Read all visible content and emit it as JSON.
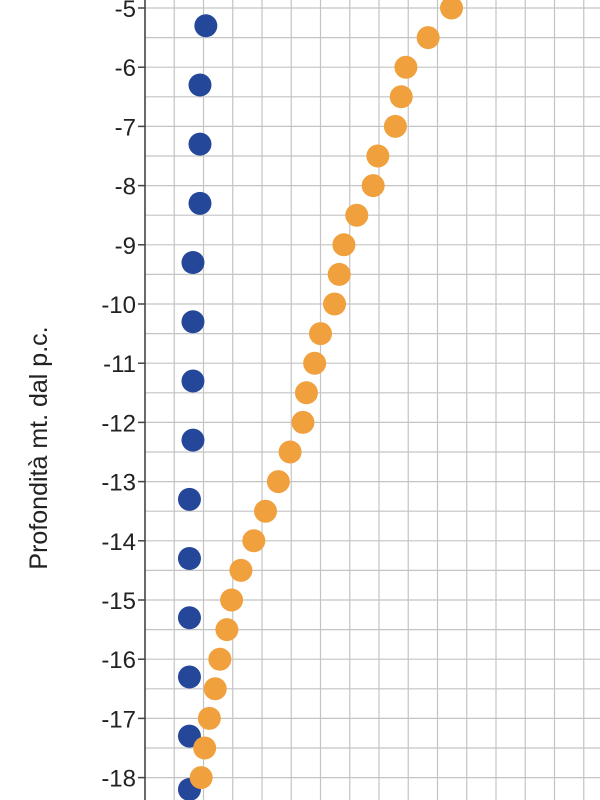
{
  "chart_data": {
    "type": "scatter",
    "title": "",
    "xlabel": "",
    "ylabel": "Profondità mt. dal p.c.",
    "ylim": [
      -18.35,
      -4.85
    ],
    "grid": true,
    "y_ticks": [
      "-5",
      "-6",
      "-7",
      "-8",
      "-9",
      "-10",
      "-11",
      "-12",
      "-13",
      "-14",
      "-15",
      "-16",
      "-17",
      "-18"
    ],
    "series": [
      {
        "color": "#24479a",
        "points": [
          {
            "x": 1.04,
            "y": -5.3
          },
          {
            "x": 0.94,
            "y": -6.3
          },
          {
            "x": 0.94,
            "y": -7.3
          },
          {
            "x": 0.94,
            "y": -8.3
          },
          {
            "x": 0.82,
            "y": -9.3
          },
          {
            "x": 0.82,
            "y": -10.3
          },
          {
            "x": 0.82,
            "y": -11.3
          },
          {
            "x": 0.82,
            "y": -12.3
          },
          {
            "x": 0.76,
            "y": -13.3
          },
          {
            "x": 0.76,
            "y": -14.3
          },
          {
            "x": 0.76,
            "y": -15.3
          },
          {
            "x": 0.76,
            "y": -16.3
          },
          {
            "x": 0.76,
            "y": -17.3
          },
          {
            "x": 0.76,
            "y": -18.2
          }
        ]
      },
      {
        "color": "#f0a03c",
        "points": [
          {
            "x": 5.24,
            "y": -5.0
          },
          {
            "x": 4.84,
            "y": -5.5
          },
          {
            "x": 4.46,
            "y": -6.0
          },
          {
            "x": 4.38,
            "y": -6.5
          },
          {
            "x": 4.28,
            "y": -7.0
          },
          {
            "x": 3.98,
            "y": -7.5
          },
          {
            "x": 3.9,
            "y": -8.0
          },
          {
            "x": 3.62,
            "y": -8.5
          },
          {
            "x": 3.4,
            "y": -9.0
          },
          {
            "x": 3.32,
            "y": -9.5
          },
          {
            "x": 3.24,
            "y": -10.0
          },
          {
            "x": 3.0,
            "y": -10.5
          },
          {
            "x": 2.9,
            "y": -11.0
          },
          {
            "x": 2.76,
            "y": -11.5
          },
          {
            "x": 2.7,
            "y": -12.0
          },
          {
            "x": 2.48,
            "y": -12.5
          },
          {
            "x": 2.28,
            "y": -13.0
          },
          {
            "x": 2.06,
            "y": -13.5
          },
          {
            "x": 1.86,
            "y": -14.0
          },
          {
            "x": 1.64,
            "y": -14.5
          },
          {
            "x": 1.48,
            "y": -15.0
          },
          {
            "x": 1.4,
            "y": -15.5
          },
          {
            "x": 1.28,
            "y": -16.0
          },
          {
            "x": 1.2,
            "y": -16.5
          },
          {
            "x": 1.1,
            "y": -17.0
          },
          {
            "x": 1.02,
            "y": -17.5
          },
          {
            "x": 0.96,
            "y": -18.0
          }
        ]
      }
    ]
  }
}
